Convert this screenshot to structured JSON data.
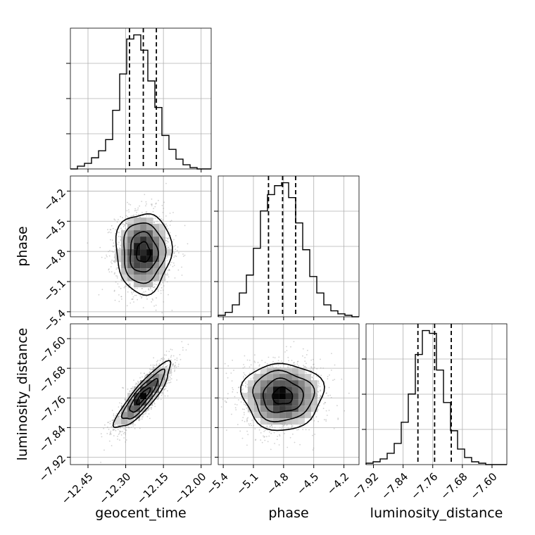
{
  "chart_data": {
    "type": "corner",
    "parameters": [
      "geocent_time",
      "phase",
      "luminosity_distance"
    ],
    "axis_labels": {
      "x": [
        "geocent_time",
        "phase",
        "luminosity_distance"
      ],
      "y": [
        "",
        "phase",
        "luminosity_distance"
      ]
    },
    "ranges": {
      "geocent_time": [
        -12.52,
        -11.96
      ],
      "phase": [
        -5.45,
        -4.05
      ],
      "luminosity_distance": [
        -7.94,
        -7.56
      ]
    },
    "ticks": {
      "geocent_time": [
        -12.45,
        -12.3,
        -12.15,
        -12.0
      ],
      "phase": [
        -5.4,
        -5.1,
        -4.8,
        -4.5,
        -4.2
      ],
      "luminosity_distance": [
        -7.92,
        -7.84,
        -7.76,
        -7.68,
        -7.6
      ]
    },
    "tick_labels": {
      "geocent_time": [
        "−12.45",
        "−12.30",
        "−12.15",
        "−12.00"
      ],
      "phase": [
        "−5.4",
        "−5.1",
        "−4.8",
        "−4.5",
        "−4.2"
      ],
      "luminosity_distance": [
        "−7.92",
        "−7.84",
        "−7.76",
        "−7.68",
        "−7.60"
      ]
    },
    "histograms": [
      {
        "parameter": "geocent_time",
        "bin_edges": [
          -12.52,
          -12.492,
          -12.464,
          -12.436,
          -12.408,
          -12.38,
          -12.352,
          -12.324,
          -12.296,
          -12.268,
          -12.24,
          -12.212,
          -12.184,
          -12.156,
          -12.128,
          -12.1,
          -12.072,
          -12.044,
          -12.016,
          -11.988,
          -11.96
        ],
        "counts": [
          0,
          2,
          4,
          8,
          13,
          21,
          42,
          68,
          93,
          96,
          85,
          63,
          44,
          24,
          14,
          7,
          3,
          1,
          0,
          0
        ],
        "quantiles": [
          -12.285,
          -12.23,
          -12.178
        ]
      },
      {
        "parameter": "phase",
        "bin_edges": [
          -5.45,
          -5.38,
          -5.31,
          -5.24,
          -5.17,
          -5.1,
          -5.03,
          -4.96,
          -4.89,
          -4.82,
          -4.75,
          -4.68,
          -4.61,
          -4.54,
          -4.47,
          -4.4,
          -4.33,
          -4.26,
          -4.19,
          -4.12,
          -4.05
        ],
        "counts": [
          1,
          3,
          8,
          16,
          28,
          46,
          71,
          82,
          88,
          90,
          80,
          63,
          45,
          27,
          16,
          8,
          4,
          2,
          1,
          0
        ],
        "quantiles": [
          -4.95,
          -4.81,
          -4.68
        ]
      },
      {
        "parameter": "luminosity_distance",
        "bin_edges": [
          -7.94,
          -7.921,
          -7.902,
          -7.883,
          -7.864,
          -7.845,
          -7.826,
          -7.807,
          -7.788,
          -7.769,
          -7.75,
          -7.731,
          -7.712,
          -7.693,
          -7.674,
          -7.655,
          -7.636,
          -7.617,
          -7.598,
          -7.579,
          -7.56
        ],
        "counts": [
          1,
          2,
          4,
          8,
          15,
          30,
          50,
          78,
          95,
          93,
          67,
          44,
          24,
          11,
          5,
          2,
          1,
          0,
          0,
          0
        ],
        "quantiles": [
          -7.8,
          -7.755,
          -7.71
        ]
      }
    ],
    "scatter_2d": [
      {
        "x": "geocent_time",
        "y": "phase",
        "center": [
          -12.23,
          -4.81
        ],
        "spread": [
          0.055,
          0.2
        ],
        "correlation": 0.0
      },
      {
        "x": "geocent_time",
        "y": "luminosity_distance",
        "center": [
          -12.23,
          -7.755
        ],
        "spread": [
          0.055,
          0.045
        ],
        "correlation": 0.85
      },
      {
        "x": "phase",
        "y": "luminosity_distance",
        "center": [
          -4.81,
          -7.755
        ],
        "spread": [
          0.2,
          0.045
        ],
        "correlation": 0.0
      }
    ],
    "quantile_style": "dashed",
    "grid": true
  }
}
